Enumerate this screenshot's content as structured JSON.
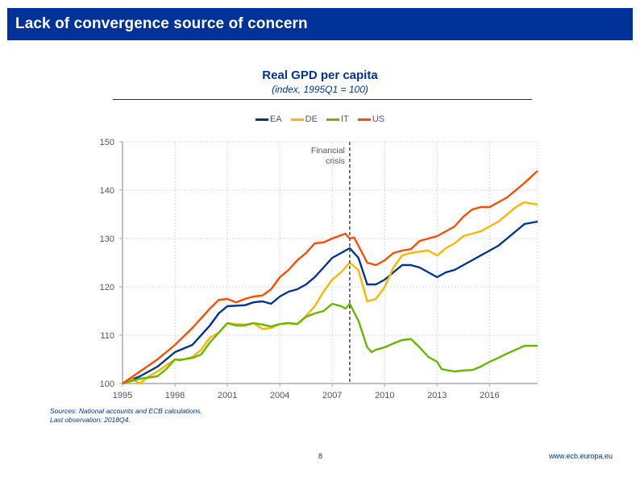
{
  "header": {
    "title": "Lack of convergence source of concern"
  },
  "chart_data": {
    "type": "line",
    "title": "Real GPD per capita",
    "subtitle": "(index, 1995Q1 = 100)",
    "xlabel": "",
    "ylabel": "",
    "xlim": [
      1995,
      2018.75
    ],
    "ylim": [
      100,
      150
    ],
    "x_ticks": [
      "1995",
      "1998",
      "2001",
      "2004",
      "2007",
      "2010",
      "2013",
      "2016"
    ],
    "x_tick_values": [
      1995,
      1998,
      2001,
      2004,
      2007,
      2010,
      2013,
      2016
    ],
    "y_ticks": [
      "100",
      "110",
      "120",
      "130",
      "140",
      "150"
    ],
    "y_tick_values": [
      100,
      110,
      120,
      130,
      140,
      150
    ],
    "grid": true,
    "legend_position": "top-center",
    "annotation": {
      "label_line1": "Financial",
      "label_line2": "crisis",
      "x": 2008.0,
      "style": "dashed-vertical"
    },
    "series": [
      {
        "name": "EA",
        "color": "#003299",
        "x": [
          1995,
          1996,
          1997,
          1998,
          1999,
          2000,
          2000.5,
          2001,
          2002,
          2002.5,
          2003,
          2003.5,
          2004,
          2004.5,
          2005,
          2005.5,
          2006,
          2006.5,
          2007,
          2007.5,
          2008,
          2008.5,
          2009,
          2009.5,
          2010,
          2010.5,
          2011,
          2011.5,
          2012,
          2012.5,
          2013,
          2013.5,
          2014,
          2014.5,
          2015,
          2015.5,
          2016,
          2016.5,
          2017,
          2017.5,
          2018,
          2018.75
        ],
        "y": [
          100,
          101.5,
          103.5,
          106.5,
          108,
          112,
          114.5,
          116,
          116.2,
          116.8,
          117,
          116.5,
          118,
          119,
          119.5,
          120.5,
          122,
          124,
          126,
          127,
          128,
          126,
          120.5,
          120.5,
          121.5,
          123,
          124.5,
          124.5,
          124,
          123,
          122,
          123,
          123.5,
          124.5,
          125.5,
          126.5,
          127.5,
          128.5,
          130,
          131.5,
          133,
          133.5
        ]
      },
      {
        "name": "DE",
        "color": "#FFB400",
        "x": [
          1995,
          1995.5,
          1996,
          1996.5,
          1997,
          1998,
          1998.5,
          1999,
          1999.5,
          2000,
          2000.5,
          2001,
          2001.5,
          2002,
          2002.5,
          2003,
          2003.5,
          2004,
          2004.5,
          2005,
          2005.5,
          2006,
          2006.5,
          2007,
          2007.5,
          2008,
          2008.5,
          2009,
          2009.5,
          2010,
          2010.5,
          2011,
          2011.5,
          2012,
          2012.5,
          2013,
          2013.5,
          2014,
          2014.5,
          2015,
          2015.5,
          2016,
          2016.5,
          2017,
          2017.5,
          2018,
          2018.75
        ],
        "y": [
          100,
          101,
          100,
          101.5,
          102.5,
          105,
          105,
          105.5,
          107,
          109.5,
          110.5,
          112.5,
          112.3,
          112.2,
          112.5,
          111.3,
          111.5,
          112.3,
          112.5,
          112.3,
          114,
          116,
          119,
          121.5,
          123,
          125,
          123.5,
          117,
          117.5,
          120,
          124,
          126.5,
          127,
          127.3,
          127.5,
          126.5,
          128,
          129,
          130.5,
          131,
          131.5,
          132.5,
          133.5,
          135,
          136.5,
          137.5,
          137
        ]
      },
      {
        "name": "IT",
        "color": "#65B800",
        "x": [
          1995,
          1996,
          1997,
          1997.5,
          1998,
          1998.25,
          1998.5,
          1999,
          1999.5,
          2000,
          2000.5,
          2001,
          2001.5,
          2002,
          2002.5,
          2003,
          2003.5,
          2004,
          2004.5,
          2005,
          2005.5,
          2006,
          2006.5,
          2007,
          2007.5,
          2007.75,
          2008,
          2008.5,
          2009,
          2009.25,
          2009.5,
          2010,
          2010.5,
          2011,
          2011.5,
          2012,
          2012.5,
          2013,
          2013.25,
          2013.5,
          2014,
          2014.5,
          2015,
          2015.5,
          2016,
          2016.5,
          2017,
          2017.5,
          2018,
          2018.75
        ],
        "y": [
          100,
          101,
          101.5,
          103,
          105,
          104.8,
          105,
          105.3,
          106,
          108.5,
          110.5,
          112.5,
          112,
          112,
          112.5,
          112.2,
          111.8,
          112.3,
          112.5,
          112.3,
          113.8,
          114.5,
          115,
          116.5,
          116,
          115.5,
          116.5,
          113,
          107.5,
          106.5,
          107,
          107.5,
          108.3,
          109,
          109.2,
          107.5,
          105.5,
          104.5,
          103,
          102.8,
          102.5,
          102.7,
          102.8,
          103.5,
          104.5,
          105.3,
          106.2,
          107,
          107.8,
          107.8
        ]
      },
      {
        "name": "US",
        "color": "#FF4B00",
        "x": [
          1995,
          1996,
          1997,
          1998,
          1999,
          2000,
          2000.5,
          2001,
          2001.5,
          2002,
          2002.5,
          2003,
          2003.5,
          2004,
          2004.5,
          2005,
          2005.5,
          2006,
          2006.5,
          2007,
          2007.75,
          2008,
          2008.25,
          2008.5,
          2009,
          2009.5,
          2010,
          2010.5,
          2011,
          2011.5,
          2012,
          2012.5,
          2013,
          2013.5,
          2014,
          2014.5,
          2015,
          2015.5,
          2016,
          2016.5,
          2017,
          2017.5,
          2018,
          2018.75
        ],
        "y": [
          100,
          102.5,
          105,
          108,
          111.5,
          115.5,
          117.3,
          117.5,
          116.8,
          117.5,
          118,
          118.2,
          119.5,
          122,
          123.5,
          125.5,
          127,
          129,
          129.2,
          130,
          131,
          130,
          130.2,
          128.5,
          125,
          124.5,
          125.5,
          127,
          127.5,
          127.8,
          129.5,
          130,
          130.5,
          131.5,
          132.5,
          134.5,
          136,
          136.5,
          136.5,
          137.5,
          138.5,
          140,
          141.5,
          144
        ]
      }
    ]
  },
  "footer": {
    "sources": "Sources: National accounts and ECB calculations.",
    "last_observation": "Last observation: 2018Q4.",
    "page_number": "8",
    "url": "www.ecb.europa.eu"
  }
}
